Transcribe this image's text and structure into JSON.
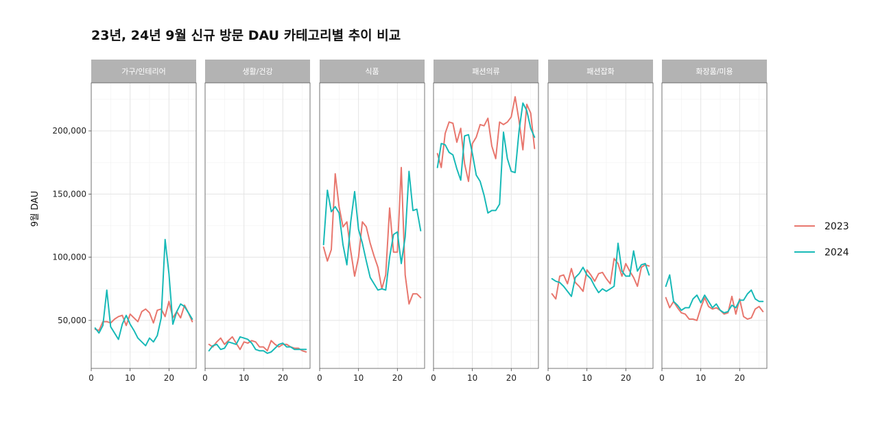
{
  "chart_data": {
    "type": "line",
    "title": "23년, 24년 9월 신규 방문 DAU 카테고리별 추이 비교",
    "xlabel": "",
    "ylabel": "9월 DAU",
    "xlim": [
      0,
      27
    ],
    "ylim": [
      12000,
      238000
    ],
    "x_ticks": [
      0,
      10,
      20
    ],
    "y_ticks": [
      50000,
      100000,
      150000,
      200000
    ],
    "y_tick_labels": [
      "50,000",
      "100,000",
      "150,000",
      "200,000"
    ],
    "legend": {
      "position": "right"
    },
    "series_colors": {
      "2023": "#e8766d",
      "2024": "#17b9b7"
    },
    "series_names": [
      "2023",
      "2024"
    ],
    "panels": [
      {
        "name": "가구/인테리어",
        "series": [
          {
            "name": "2023",
            "x": [
              1,
              2,
              3,
              4,
              5,
              6,
              7,
              8,
              9,
              10,
              11,
              12,
              13,
              14,
              15,
              16,
              17,
              18,
              19,
              20,
              21,
              22,
              23,
              24,
              25,
              26
            ],
            "values": [
              43000,
              42000,
              49000,
              49000,
              48000,
              51000,
              53000,
              54000,
              46000,
              55000,
              52000,
              49000,
              57000,
              59000,
              56000,
              48000,
              58000,
              59000,
              53000,
              65000,
              52000,
              57000,
              52000,
              62000,
              56000,
              49000
            ]
          },
          {
            "name": "2024",
            "x": [
              1,
              2,
              3,
              4,
              5,
              6,
              7,
              8,
              9,
              10,
              11,
              12,
              13,
              14,
              15,
              16,
              17,
              18,
              19,
              20,
              21,
              22,
              23,
              24,
              25,
              26
            ],
            "values": [
              44000,
              40000,
              46000,
              74000,
              45000,
              40000,
              35000,
              47000,
              54000,
              47000,
              42000,
              36000,
              33000,
              30000,
              36000,
              33000,
              38000,
              52000,
              114000,
              87000,
              47000,
              57000,
              63000,
              61000,
              56000,
              51000
            ]
          }
        ]
      },
      {
        "name": "생활/건강",
        "series": [
          {
            "name": "2023",
            "x": [
              1,
              2,
              3,
              4,
              5,
              6,
              7,
              8,
              9,
              10,
              11,
              12,
              13,
              14,
              15,
              16,
              17,
              18,
              19,
              20,
              21,
              22,
              23,
              24,
              25,
              26
            ],
            "values": [
              31000,
              29000,
              33000,
              36000,
              31000,
              34000,
              37000,
              32000,
              27000,
              33000,
              32000,
              34000,
              33000,
              29000,
              29000,
              26000,
              34000,
              31000,
              29000,
              31000,
              31000,
              29000,
              28000,
              28000,
              26000,
              25000
            ]
          },
          {
            "name": "2024",
            "x": [
              1,
              2,
              3,
              4,
              5,
              6,
              7,
              8,
              9,
              10,
              11,
              12,
              13,
              14,
              15,
              16,
              17,
              18,
              19,
              20,
              21,
              22,
              23,
              24,
              25,
              26
            ],
            "values": [
              26000,
              30000,
              31000,
              27000,
              28000,
              33000,
              32000,
              31000,
              37000,
              36000,
              35000,
              32000,
              27000,
              26000,
              26000,
              24000,
              25000,
              28000,
              31000,
              32000,
              29000,
              29000,
              27000,
              27000,
              27000,
              27000
            ]
          }
        ]
      },
      {
        "name": "식품",
        "series": [
          {
            "name": "2023",
            "x": [
              1,
              2,
              3,
              4,
              5,
              6,
              7,
              8,
              9,
              10,
              11,
              12,
              13,
              14,
              15,
              16,
              17,
              18,
              19,
              20,
              21,
              22,
              23,
              24,
              25,
              26
            ],
            "values": [
              108000,
              97000,
              106000,
              166000,
              140000,
              124000,
              128000,
              105000,
              85000,
              100000,
              128000,
              124000,
              111000,
              101000,
              92000,
              75000,
              86000,
              139000,
              104000,
              104000,
              171000,
              86000,
              63000,
              71000,
              71000,
              68000
            ]
          },
          {
            "name": "2024",
            "x": [
              1,
              2,
              3,
              4,
              5,
              6,
              7,
              8,
              9,
              10,
              11,
              12,
              13,
              14,
              15,
              16,
              17,
              18,
              19,
              20,
              21,
              22,
              23,
              24,
              25,
              26
            ],
            "values": [
              110000,
              153000,
              136000,
              140000,
              135000,
              110000,
              94000,
              128000,
              152000,
              122000,
              111000,
              97000,
              84000,
              79000,
              74000,
              75000,
              74000,
              100000,
              118000,
              120000,
              95000,
              116000,
              168000,
              137000,
              138000,
              121000
            ]
          }
        ]
      },
      {
        "name": "패션의류",
        "series": [
          {
            "name": "2023",
            "x": [
              1,
              2,
              3,
              4,
              5,
              6,
              7,
              8,
              9,
              10,
              11,
              12,
              13,
              14,
              15,
              16,
              17,
              18,
              19,
              20,
              21,
              22,
              23,
              24,
              25,
              26
            ],
            "values": [
              182000,
              171000,
              198000,
              207000,
              206000,
              191000,
              202000,
              174000,
              160000,
              190000,
              195000,
              205000,
              204000,
              210000,
              188000,
              178000,
              207000,
              205000,
              207000,
              211000,
              227000,
              208000,
              185000,
              221000,
              214000,
              186000
            ]
          },
          {
            "name": "2024",
            "x": [
              1,
              2,
              3,
              4,
              5,
              6,
              7,
              8,
              9,
              10,
              11,
              12,
              13,
              14,
              15,
              16,
              17,
              18,
              19,
              20,
              21,
              22,
              23,
              24,
              25,
              26
            ],
            "values": [
              171000,
              190000,
              189000,
              183000,
              181000,
              170000,
              161000,
              196000,
              197000,
              182000,
              165000,
              160000,
              149000,
              135000,
              137000,
              137000,
              142000,
              199000,
              178000,
              168000,
              167000,
              200000,
              222000,
              216000,
              202000,
              195000
            ]
          }
        ]
      },
      {
        "name": "패션잡화",
        "series": [
          {
            "name": "2023",
            "x": [
              1,
              2,
              3,
              4,
              5,
              6,
              7,
              8,
              9,
              10,
              11,
              12,
              13,
              14,
              15,
              16,
              17,
              18,
              19,
              20,
              21,
              22,
              23,
              24,
              25,
              26
            ],
            "values": [
              71000,
              67000,
              85000,
              86000,
              79000,
              91000,
              80000,
              77000,
              73000,
              90000,
              86000,
              81000,
              87000,
              88000,
              83000,
              79000,
              99000,
              95000,
              85000,
              95000,
              89000,
              84000,
              77000,
              92000,
              94000,
              93000
            ]
          },
          {
            "name": "2024",
            "x": [
              1,
              2,
              3,
              4,
              5,
              6,
              7,
              8,
              9,
              10,
              11,
              12,
              13,
              14,
              15,
              16,
              17,
              18,
              19,
              20,
              21,
              22,
              23,
              24,
              25,
              26
            ],
            "values": [
              83000,
              81000,
              80000,
              77000,
              73000,
              69000,
              84000,
              87000,
              92000,
              86000,
              83000,
              77000,
              72000,
              75000,
              73000,
              75000,
              77000,
              111000,
              89000,
              85000,
              85000,
              105000,
              89000,
              94000,
              95000,
              86000
            ]
          }
        ]
      },
      {
        "name": "화장품/미용",
        "series": [
          {
            "name": "2023",
            "x": [
              1,
              2,
              3,
              4,
              5,
              6,
              7,
              8,
              9,
              10,
              11,
              12,
              13,
              14,
              15,
              16,
              17,
              18,
              19,
              20,
              21,
              22,
              23,
              24,
              25,
              26
            ],
            "values": [
              68000,
              60000,
              65000,
              60000,
              56000,
              55000,
              51000,
              51000,
              50000,
              60000,
              68000,
              61000,
              59000,
              60000,
              58000,
              55000,
              56000,
              69000,
              55000,
              67000,
              53000,
              51000,
              52000,
              59000,
              61000,
              57000
            ]
          },
          {
            "name": "2024",
            "x": [
              1,
              2,
              3,
              4,
              5,
              6,
              7,
              8,
              9,
              10,
              11,
              12,
              13,
              14,
              15,
              16,
              17,
              18,
              19,
              20,
              21,
              22,
              23,
              24,
              25,
              26
            ],
            "values": [
              77000,
              86000,
              65000,
              62000,
              58000,
              60000,
              60000,
              67000,
              70000,
              64000,
              70000,
              65000,
              60000,
              63000,
              58000,
              56000,
              57000,
              62000,
              60000,
              66000,
              66000,
              71000,
              74000,
              67000,
              65000,
              65000
            ]
          }
        ]
      }
    ]
  }
}
